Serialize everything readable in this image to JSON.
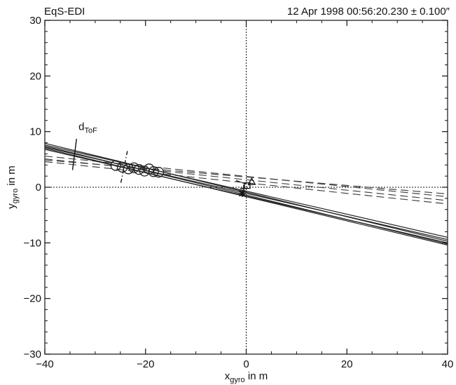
{
  "header": {
    "instrument": "EqS-EDI",
    "timestamp": "12 Apr 1998 00:56:20.230 ± 0.100″"
  },
  "chart_data": {
    "type": "scatter",
    "title": "",
    "xlabel": {
      "main": "x",
      "sub": "gyro",
      "suffix": " in m"
    },
    "ylabel": {
      "main": "y",
      "sub": "gyro",
      "suffix": " in m"
    },
    "xlim": [
      -40,
      40
    ],
    "ylim": [
      -30,
      30
    ],
    "xticks": [
      -40,
      -20,
      0,
      20,
      40
    ],
    "yticks": [
      -30,
      -20,
      -10,
      0,
      10,
      20,
      30
    ],
    "xtick_labels": [
      "−40",
      "−20",
      "0",
      "20",
      "40"
    ],
    "ytick_labels": [
      "−30",
      "−20",
      "−10",
      "0",
      "10",
      "20",
      "30"
    ],
    "grid": false,
    "reference_lines": [
      {
        "orientation": "vertical",
        "at": 0,
        "style": "dotted"
      },
      {
        "orientation": "horizontal",
        "at": 0,
        "style": "dotted"
      }
    ],
    "solid_beams": [
      {
        "x": [
          -40,
          40
        ],
        "y": [
          7.2,
          -9.4
        ]
      },
      {
        "x": [
          -40,
          40
        ],
        "y": [
          7.6,
          -9.0
        ]
      },
      {
        "x": [
          -40,
          40
        ],
        "y": [
          6.8,
          -10.0
        ]
      },
      {
        "x": [
          -40,
          40
        ],
        "y": [
          7.9,
          -9.7
        ]
      },
      {
        "x": [
          -40,
          40
        ],
        "y": [
          7.0,
          -10.4
        ]
      },
      {
        "x": [
          -40,
          40
        ],
        "y": [
          7.4,
          -10.2
        ]
      }
    ],
    "dashed_beams": [
      {
        "x": [
          -40,
          40
        ],
        "y": [
          4.6,
          -3.0
        ]
      },
      {
        "x": [
          -40,
          40
        ],
        "y": [
          5.1,
          -2.4
        ]
      },
      {
        "x": [
          -40,
          40
        ],
        "y": [
          5.6,
          -1.7
        ]
      },
      {
        "x": [
          -40,
          40
        ],
        "y": [
          4.9,
          -1.2
        ]
      }
    ],
    "gun_positions_circles": [
      {
        "x": -25.9,
        "y": 3.9
      },
      {
        "x": -24.6,
        "y": 3.6
      },
      {
        "x": -23.4,
        "y": 3.3
      },
      {
        "x": -22.3,
        "y": 3.5
      },
      {
        "x": -21.3,
        "y": 3.2
      },
      {
        "x": -20.2,
        "y": 2.9
      },
      {
        "x": -19.3,
        "y": 3.3
      },
      {
        "x": -18.4,
        "y": 2.8
      },
      {
        "x": -17.4,
        "y": 2.7
      }
    ],
    "target_markers": [
      {
        "shape": "triangle",
        "x": 1.1,
        "y": 1.0
      },
      {
        "shape": "square",
        "x": 0.2,
        "y": 0.3
      },
      {
        "shape": "plus",
        "x": -0.5,
        "y": -0.2
      },
      {
        "shape": "asterisk",
        "x": -0.8,
        "y": -1.1
      }
    ],
    "tof_annotation": {
      "label": {
        "main": "d",
        "sub": "ToF"
      },
      "label_at": {
        "x": -33.3,
        "y": 10.3
      },
      "marker_line": {
        "x": [
          -34.5,
          -33.7
        ],
        "y": [
          3.1,
          8.7
        ]
      },
      "dash_dot_line": {
        "x": [
          -24.9,
          -23.6
        ],
        "y": [
          0.8,
          6.5
        ]
      }
    },
    "beam_connector": {
      "x": [
        -2.0,
        0.6
      ],
      "y": [
        1.2,
        0.4
      ]
    }
  }
}
